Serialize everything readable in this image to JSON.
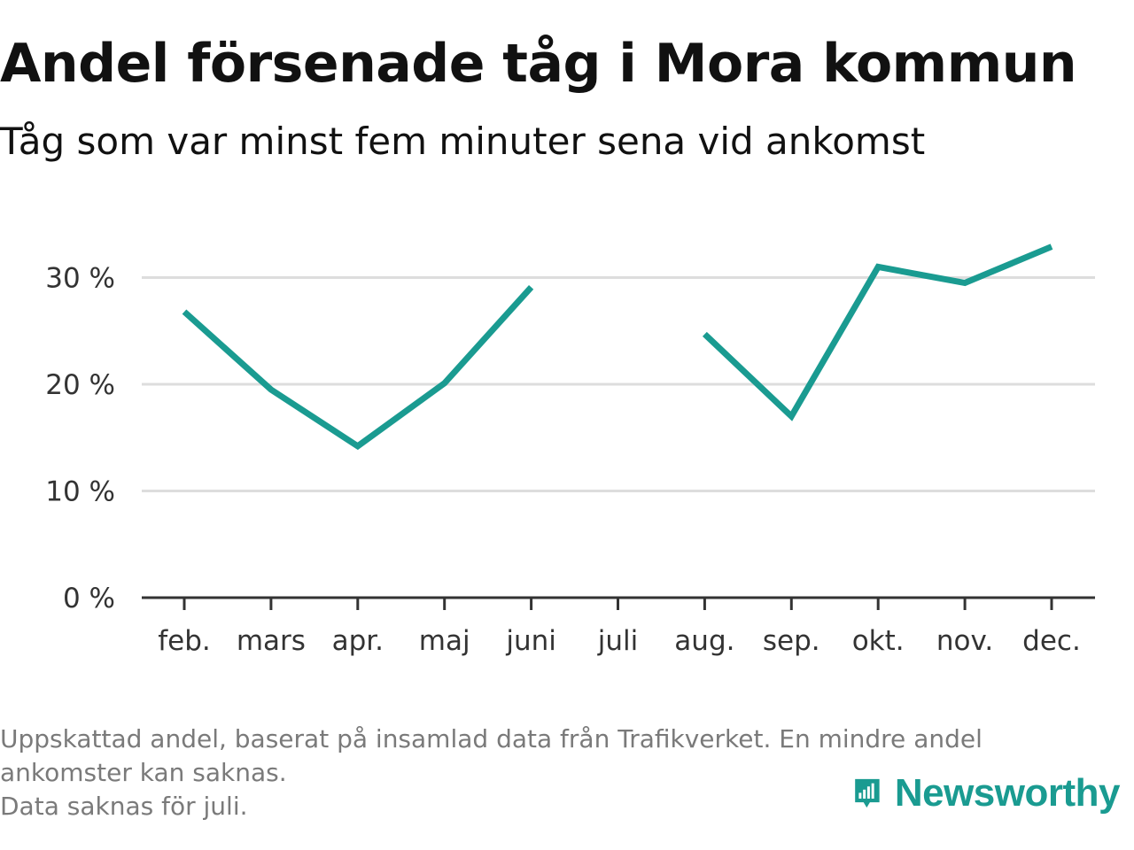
{
  "title": "Andel försenade tåg i Mora kommun",
  "subtitle": "Tåg som var minst fem minuter sena vid ankomst",
  "footnote": {
    "line1": "Uppskattad andel, baserat på insamlad data från Trafikverket. En mindre andel",
    "line2": "ankomster kan saknas.",
    "line3": "Data saknas för juli."
  },
  "brand": {
    "name": "Newsworthy",
    "icon": "newsworthy-logo-icon",
    "color": "#1a9b91"
  },
  "chart_data": {
    "type": "line",
    "categories": [
      "feb.",
      "mars",
      "apr.",
      "maj",
      "juni",
      "juli",
      "aug.",
      "sep.",
      "okt.",
      "nov.",
      "dec."
    ],
    "series": [
      {
        "values": [
          26.8,
          19.5,
          14.2,
          20.1,
          29.1,
          null,
          24.7,
          17.0,
          31.0,
          29.5,
          32.9
        ],
        "color": "#1a9b91"
      }
    ],
    "yticks": [
      0,
      10,
      20,
      30
    ],
    "ytick_labels": [
      "0 %",
      "10 %",
      "20 %",
      "30 %"
    ],
    "ylim": [
      0,
      35
    ],
    "grid": true,
    "missing": [
      "juli"
    ]
  }
}
